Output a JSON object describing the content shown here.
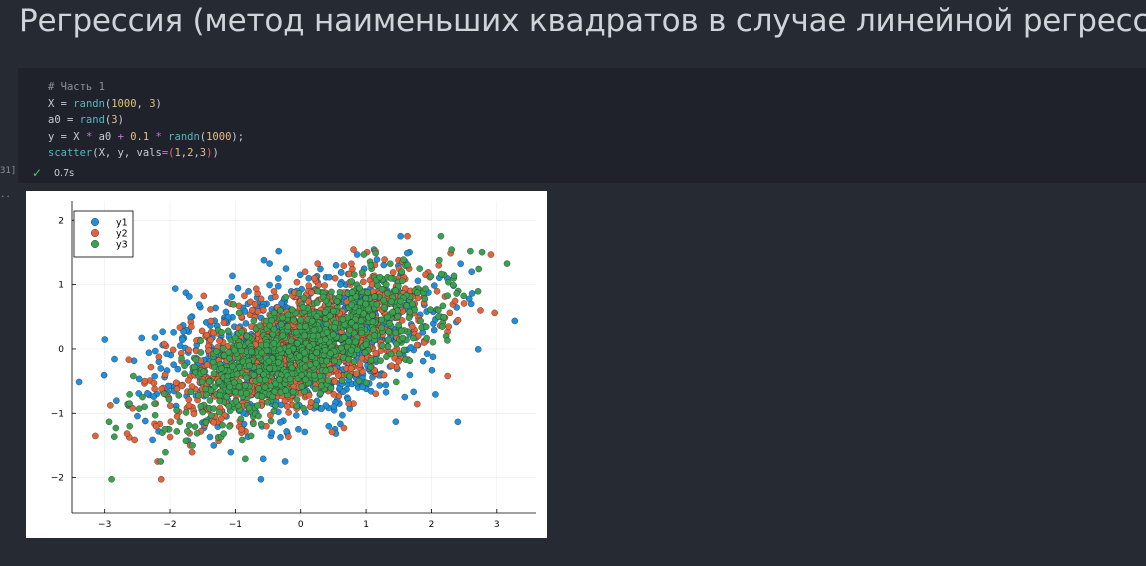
{
  "markdown": {
    "title": "Регрессия (метод наименьших квадратов в случае линейной регрессии)"
  },
  "code_cell": {
    "exec_count": "31]",
    "output_marker": "..",
    "status_time": "0.7s",
    "lines": {
      "l1": {
        "comment": "# Часть 1"
      },
      "l2": {
        "a": "X = ",
        "f": "randn",
        "p1": "(",
        "n1": "1000",
        "c": ", ",
        "n2": "3",
        "p2": ")"
      },
      "l3": {
        "a": "a0 = ",
        "f": "rand",
        "p1": "(",
        "n1": "3",
        "p2": ")"
      },
      "l4": {
        "a": "y = X ",
        "op1": "*",
        "b": " a0 ",
        "op2": "+",
        "sp": " ",
        "n1": "0.1",
        "sp2": " ",
        "op3": "*",
        "sp3": " ",
        "f": "randn",
        "p1": "(",
        "n2": "1000",
        "p2": ");"
      },
      "l5": {
        "f": "scatter",
        "p1": "(X, y, vals",
        "op": "=",
        "t1": "(",
        "n1": "1",
        "c1": ",",
        "n2": "2",
        "c2": ",",
        "n3": "3",
        "t2": ")",
        "p2": ")"
      }
    }
  },
  "chart_data": {
    "type": "scatter",
    "title": "",
    "xlabel": "",
    "ylabel": "",
    "xlim": [
      -3.5,
      3.6
    ],
    "ylim": [
      -2.55,
      2.3
    ],
    "xticks": [
      "−3",
      "−2",
      "−1",
      "0",
      "1",
      "2",
      "3"
    ],
    "yticks": [
      "−2",
      "−1",
      "0",
      "1",
      "2"
    ],
    "xtick_values": [
      -3,
      -2,
      -1,
      0,
      1,
      2,
      3
    ],
    "ytick_values": [
      -2,
      -1,
      0,
      1,
      2
    ],
    "grid": true,
    "legend_position": "top-left",
    "series": [
      {
        "name": "y1",
        "color": "#1f8fdb",
        "points": []
      },
      {
        "name": "y2",
        "color": "#e0643c",
        "points": []
      },
      {
        "name": "y3",
        "color": "#3aa150",
        "points": []
      }
    ]
  }
}
